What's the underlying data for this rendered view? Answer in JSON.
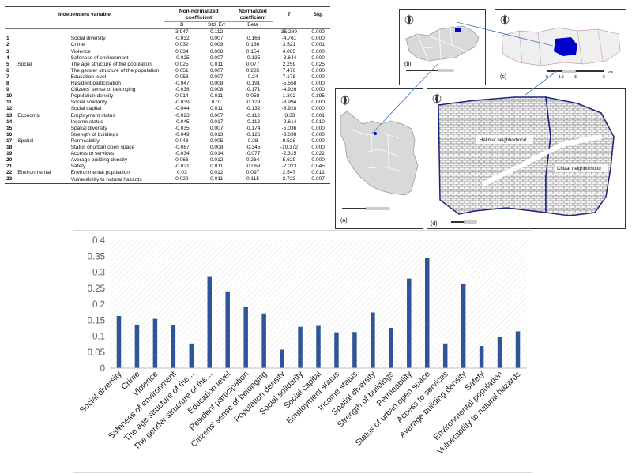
{
  "table": {
    "header": {
      "independent_variable": "Independent variable",
      "non_normalized": "Non-normalized coefficient",
      "normalized": "Normalized coefficient",
      "t": "T",
      "sig": "Sig.",
      "b": "B",
      "std_err": "Std. Err",
      "beta": "Beta"
    },
    "constant": {
      "b": "3.947",
      "se": "0.112",
      "t": "35.289",
      "sig": "0.000"
    },
    "groups": {
      "social": "Social",
      "economic": "Economic",
      "spatial": "Spatial",
      "environmental": "Environmental"
    },
    "rows": [
      {
        "no": "1",
        "name": "Social diversity",
        "b": "-0.032",
        "se": "0.007",
        "beta": "-0.163",
        "t": "-4.761",
        "sig": "0.000"
      },
      {
        "no": "2",
        "name": "Crime",
        "b": "0.032",
        "se": "0.009",
        "beta": "0.136",
        "t": "3.521",
        "sig": "0.001"
      },
      {
        "no": "3",
        "name": "Violence",
        "b": "0.034",
        "se": "0.008",
        "beta": "0.154",
        "t": "4.065",
        "sig": "0.000"
      },
      {
        "no": "4",
        "name": "Safeness of environment",
        "b": "-0.025",
        "se": "0.007",
        "beta": "-0.135",
        "t": "-3.644",
        "sig": "0.000"
      },
      {
        "no": "5",
        "name": "The age structure of the population",
        "b": "0.025",
        "se": "0.011",
        "beta": "0.077",
        "t": "2.259",
        "sig": "0.025"
      },
      {
        "no": "6",
        "name": "The gender structure of the population",
        "b": "0.051",
        "se": "0.007",
        "beta": "0.285",
        "t": "7.476",
        "sig": "0.000"
      },
      {
        "no": "7",
        "name": "Education level",
        "b": "0.053",
        "se": "0.007",
        "beta": "0.24",
        "t": "7.178",
        "sig": "0.000"
      },
      {
        "no": "8",
        "name": "Resident participation",
        "b": "-0.047",
        "se": "0.008",
        "beta": "-0.191",
        "t": "-5.558",
        "sig": "0.000"
      },
      {
        "no": "9",
        "name": "Citizens' sense of belonging",
        "b": "-0.038",
        "se": "0.008",
        "beta": "-0.171",
        "t": "-4.926",
        "sig": "0.000"
      },
      {
        "no": "10",
        "name": "Population density",
        "b": "0.014",
        "se": "0.011",
        "beta": "0.058",
        "t": "1.302",
        "sig": "0.195"
      },
      {
        "no": "11",
        "name": "Social solidarity",
        "b": "-0.039",
        "se": "0.01",
        "beta": "-0.129",
        "t": "-3.994",
        "sig": "0.000"
      },
      {
        "no": "12",
        "name": "Social capital",
        "b": "-0.044",
        "se": "0.011",
        "beta": "-0.132",
        "t": "-3.928",
        "sig": "0.000"
      },
      {
        "no": "13",
        "name": "Employment status",
        "b": "-0.023",
        "se": "0.007",
        "beta": "-0.112",
        "t": "-3.33",
        "sig": "0.001"
      },
      {
        "no": "14",
        "name": "Income status",
        "b": "-0.045",
        "se": "0.017",
        "beta": "-0.113",
        "t": "-2.614",
        "sig": "0.010"
      },
      {
        "no": "15",
        "name": "Spatial diversity",
        "b": "-0.035",
        "se": "0.007",
        "beta": "-0.174",
        "t": "-5.036",
        "sig": "0.000"
      },
      {
        "no": "16",
        "name": "Strength of buildings",
        "b": "-0.049",
        "se": "0.013",
        "beta": "-0.126",
        "t": "-3.698",
        "sig": "0.000"
      },
      {
        "no": "17",
        "name": "Permeability",
        "b": "0.043",
        "se": "0.005",
        "beta": "0.28",
        "t": "8.528",
        "sig": "0.000"
      },
      {
        "no": "18",
        "name": "Status of urban open space",
        "b": "-0.087",
        "se": "0.008",
        "beta": "-0.345",
        "t": "-10.372",
        "sig": "0.000"
      },
      {
        "no": "19",
        "name": "Access to services",
        "b": "-0.034",
        "se": "0.014",
        "beta": "-0.077",
        "t": "-2.315",
        "sig": "0.022"
      },
      {
        "no": "20",
        "name": "Average building density",
        "b": "0.066",
        "se": "0.012",
        "beta": "0.264",
        "t": "5.629",
        "sig": "0.000"
      },
      {
        "no": "21",
        "name": "Safety",
        "b": "-0.021",
        "se": "0.011",
        "beta": "-0.069",
        "t": "-2.023",
        "sig": "0.045"
      },
      {
        "no": "22",
        "name": "Environmental population",
        "b": "0.03",
        "se": "0.012",
        "beta": "0.097",
        "t": "2.547",
        "sig": "0.012"
      },
      {
        "no": "23",
        "name": "Vulnerability to natural hazards",
        "b": "0.029",
        "se": "0.011",
        "beta": "0.115",
        "t": "2.723",
        "sig": "0.007"
      }
    ]
  },
  "maps": {
    "panel_a": "(a)",
    "panel_b": "(b)",
    "panel_c": "(c)",
    "panel_d": "(d)",
    "hekmat_label": "Hekmat neighborhood",
    "chizar_label": "Chizar neighborhood",
    "scale_c_0": "0",
    "scale_c_1": "1.5",
    "scale_c_2": "3",
    "scale_c_3": "6",
    "scale_c_unit": "KM",
    "colors": {
      "highlight": "#0000cc",
      "region_fill": "#d9d9d9",
      "connector": "#4a7fc1"
    }
  },
  "chart_data": {
    "type": "bar",
    "title": "",
    "xlabel": "",
    "ylabel": "",
    "ylim": [
      0,
      0.4
    ],
    "yticks": [
      "0",
      "0.05",
      "0.1",
      "0.15",
      "0.2",
      "0.25",
      "0.3",
      "0.35",
      "0.4"
    ],
    "grid": false,
    "bar_color": "#2f5597",
    "categories": [
      "Social diversity",
      "Crime",
      "Violence",
      "Safeness of environment",
      "The age structure of the...",
      "The gender structure of the...",
      "Education level",
      "Resident participation",
      "Citizens' sense of belonging",
      "Population density",
      "Social solidarity",
      "Social capital",
      "Employment status",
      "Income status",
      "Spatial diversity",
      "Strength of buildings",
      "Permeability",
      "Status of urban open space",
      "Access to services",
      "Average building density",
      "Safety",
      "Environmental population",
      "Vulnerability to natural hazards"
    ],
    "values": [
      0.163,
      0.136,
      0.154,
      0.135,
      0.077,
      0.285,
      0.24,
      0.191,
      0.171,
      0.058,
      0.129,
      0.132,
      0.112,
      0.113,
      0.174,
      0.126,
      0.28,
      0.345,
      0.077,
      0.264,
      0.069,
      0.097,
      0.115
    ]
  }
}
